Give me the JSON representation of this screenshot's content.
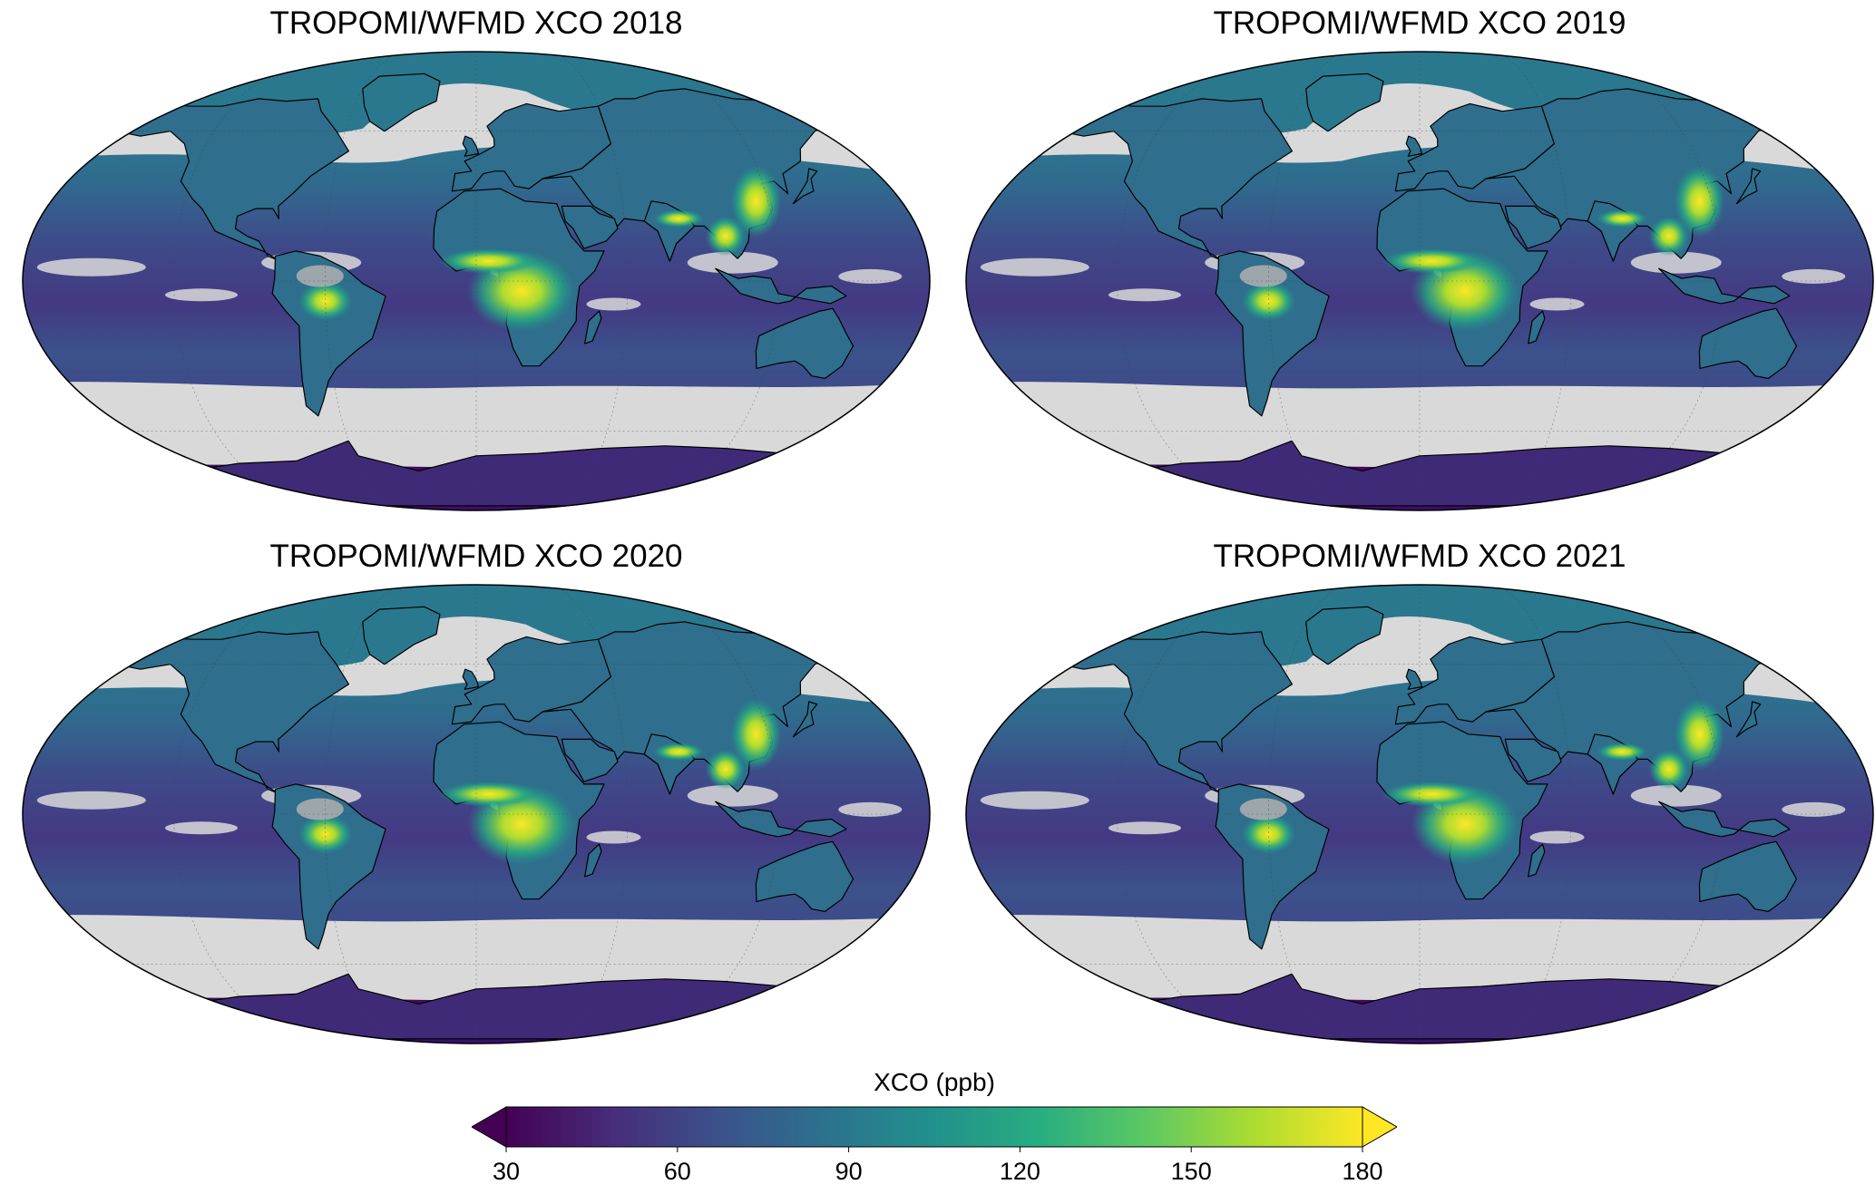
{
  "panels": [
    {
      "title": "TROPOMI/WFMD XCO 2018",
      "year": 2018
    },
    {
      "title": "TROPOMI/WFMD XCO 2019",
      "year": 2019
    },
    {
      "title": "TROPOMI/WFMD XCO 2020",
      "year": 2020
    },
    {
      "title": "TROPOMI/WFMD XCO 2021",
      "year": 2021
    }
  ],
  "map": {
    "projection": "Robinson",
    "no_data_color": "#d9d9d9",
    "land_outline_color": "#000000",
    "graticule": true
  },
  "colorbar": {
    "label": "XCO (ppb)",
    "colormap": "viridis",
    "extend": "both",
    "min": 30,
    "max": 180,
    "ticks": [
      "30",
      "60",
      "90",
      "120",
      "150",
      "180"
    ],
    "stops": [
      "#440154",
      "#472d7b",
      "#3b528b",
      "#2c728e",
      "#21918c",
      "#28ae80",
      "#5ec962",
      "#addc30",
      "#fde725"
    ]
  }
}
